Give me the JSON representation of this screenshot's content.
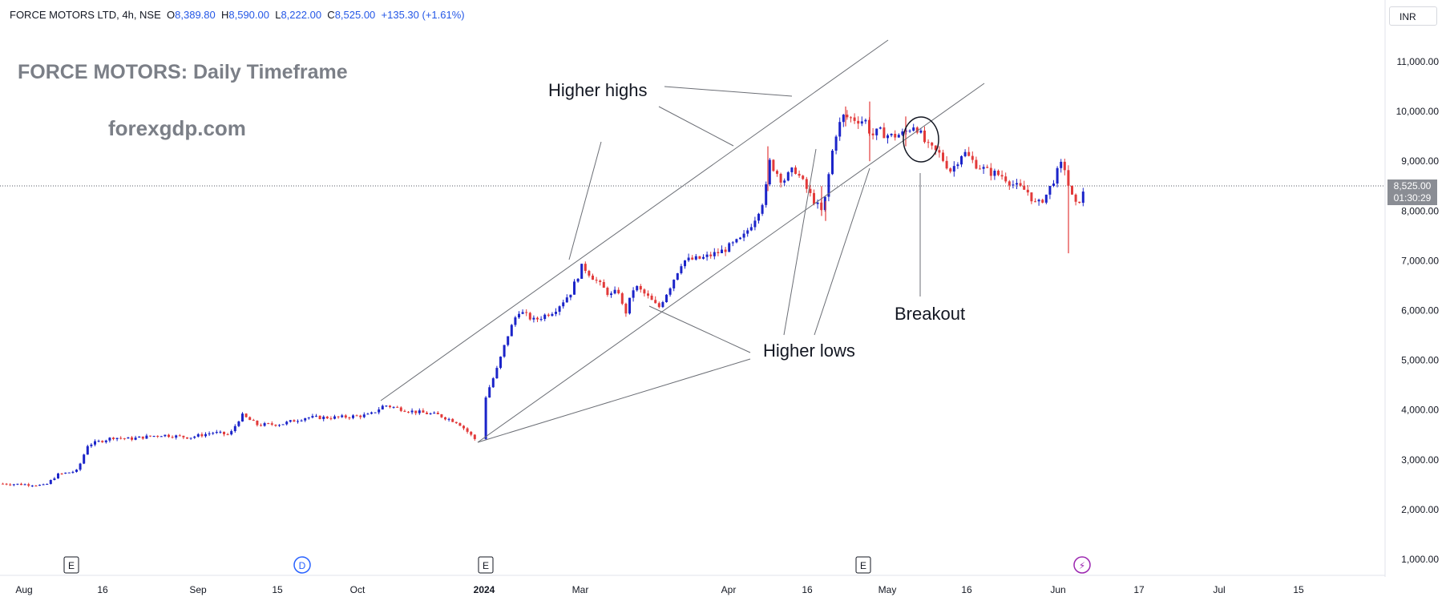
{
  "header": {
    "symbol": "FORCE MOTORS LTD, 4h, NSE",
    "open_label": "O",
    "open": "8,389.80",
    "high_label": "H",
    "high": "8,590.00",
    "low_label": "L",
    "low": "8,222.00",
    "close_label": "C",
    "close": "8,525.00",
    "change": "+135.30 (+1.61%)"
  },
  "overlay": {
    "title": "FORCE MOTORS: Daily Timeframe",
    "site": "forexgdp.com"
  },
  "annotations": {
    "higher_highs": "Higher highs",
    "higher_lows": "Higher lows",
    "breakout": "Breakout"
  },
  "price_axis": {
    "currency": "INR",
    "current_price": "8,525.00",
    "countdown": "01:30:29"
  },
  "event_markers": [
    {
      "label": "E",
      "x_label": "Aug-16"
    },
    {
      "label": "D",
      "x_label": "Oct"
    },
    {
      "label": "E",
      "x_label": "2024"
    },
    {
      "label": "E",
      "x_label": "Apr-May"
    },
    {
      "label": "⚡",
      "x_label": "Jun"
    }
  ],
  "colors": {
    "up": "#1b24c9",
    "down": "#e23a3a",
    "trend_line": "#6b6e75",
    "grid_price": "#555a66",
    "dividend_marker": "#2962ff",
    "lightning_marker": "#9c27b0"
  },
  "chart_data": {
    "type": "candlestick",
    "title": "FORCE MOTORS: Daily Timeframe",
    "y_ticks": [
      1000,
      2000,
      3000,
      4000,
      5000,
      6000,
      7000,
      8000,
      9000,
      10000,
      11000
    ],
    "y_tick_labels": [
      "1,000.00",
      "2,000.00",
      "3,000.00",
      "4,000.00",
      "5,000.00",
      "6,000.00",
      "7,000.00",
      "8,000.00",
      "9,000.00",
      "10,000.00",
      "11,000.00"
    ],
    "ylim": [
      600,
      11900
    ],
    "x_ticks": [
      "Aug",
      "16",
      "Sep",
      "15",
      "Oct",
      "2024",
      "Mar",
      "Apr",
      "16",
      "May",
      "16",
      "Jun",
      "17",
      "Jul",
      "15"
    ],
    "last_price": 8525,
    "path_close": [
      {
        "x": 0,
        "y": 2520
      },
      {
        "x": 40,
        "y": 2500
      },
      {
        "x": 55,
        "y": 2480
      },
      {
        "x": 70,
        "y": 2700
      },
      {
        "x": 95,
        "y": 2780
      },
      {
        "x": 108,
        "y": 3300
      },
      {
        "x": 140,
        "y": 3450
      },
      {
        "x": 160,
        "y": 3420
      },
      {
        "x": 200,
        "y": 3500
      },
      {
        "x": 235,
        "y": 3450
      },
      {
        "x": 265,
        "y": 3550
      },
      {
        "x": 285,
        "y": 3500
      },
      {
        "x": 300,
        "y": 3900
      },
      {
        "x": 320,
        "y": 3700
      },
      {
        "x": 350,
        "y": 3720
      },
      {
        "x": 380,
        "y": 3850
      },
      {
        "x": 420,
        "y": 3850
      },
      {
        "x": 460,
        "y": 3900
      },
      {
        "x": 478,
        "y": 4100
      },
      {
        "x": 510,
        "y": 3980
      },
      {
        "x": 545,
        "y": 3900
      },
      {
        "x": 570,
        "y": 3750
      },
      {
        "x": 592,
        "y": 3400
      },
      {
        "x": 605,
        "y": 4300
      },
      {
        "x": 618,
        "y": 4800
      },
      {
        "x": 632,
        "y": 5500
      },
      {
        "x": 645,
        "y": 6000
      },
      {
        "x": 665,
        "y": 5800
      },
      {
        "x": 690,
        "y": 6000
      },
      {
        "x": 710,
        "y": 6350
      },
      {
        "x": 725,
        "y": 6900
      },
      {
        "x": 745,
        "y": 6550
      },
      {
        "x": 760,
        "y": 6300
      },
      {
        "x": 770,
        "y": 6400
      },
      {
        "x": 778,
        "y": 5900
      },
      {
        "x": 790,
        "y": 6500
      },
      {
        "x": 805,
        "y": 6300
      },
      {
        "x": 820,
        "y": 6050
      },
      {
        "x": 835,
        "y": 6500
      },
      {
        "x": 850,
        "y": 7000
      },
      {
        "x": 875,
        "y": 7050
      },
      {
        "x": 900,
        "y": 7200
      },
      {
        "x": 925,
        "y": 7450
      },
      {
        "x": 940,
        "y": 7850
      },
      {
        "x": 953,
        "y": 8300
      },
      {
        "x": 958,
        "y": 9000
      },
      {
        "x": 975,
        "y": 8600
      },
      {
        "x": 990,
        "y": 8850
      },
      {
        "x": 1010,
        "y": 8300
      },
      {
        "x": 1025,
        "y": 7950
      },
      {
        "x": 1035,
        "y": 9000
      },
      {
        "x": 1040,
        "y": 9500
      },
      {
        "x": 1050,
        "y": 9900
      },
      {
        "x": 1065,
        "y": 9850
      },
      {
        "x": 1080,
        "y": 9800
      },
      {
        "x": 1085,
        "y": 9500
      },
      {
        "x": 1095,
        "y": 9600
      },
      {
        "x": 1110,
        "y": 9500
      },
      {
        "x": 1125,
        "y": 9550
      },
      {
        "x": 1140,
        "y": 9750
      },
      {
        "x": 1155,
        "y": 9300
      },
      {
        "x": 1170,
        "y": 9150
      },
      {
        "x": 1185,
        "y": 8800
      },
      {
        "x": 1200,
        "y": 9200
      },
      {
        "x": 1215,
        "y": 8950
      },
      {
        "x": 1230,
        "y": 8800
      },
      {
        "x": 1250,
        "y": 8700
      },
      {
        "x": 1265,
        "y": 8500
      },
      {
        "x": 1280,
        "y": 8400
      },
      {
        "x": 1292,
        "y": 8100
      },
      {
        "x": 1305,
        "y": 8350
      },
      {
        "x": 1315,
        "y": 8700
      },
      {
        "x": 1325,
        "y": 9000
      },
      {
        "x": 1333,
        "y": 8400
      },
      {
        "x": 1340,
        "y": 8100
      },
      {
        "x": 1350,
        "y": 8350
      },
      {
        "x": 1360,
        "y": 8500
      }
    ],
    "spikes": [
      {
        "x": 958,
        "y_low": 8400,
        "y_high": 9300
      },
      {
        "x": 1025,
        "y_low": 7900,
        "y_high": 8500
      },
      {
        "x": 1030,
        "y_low": 7800,
        "y_high": 8200
      },
      {
        "x": 1055,
        "y_low": 9700,
        "y_high": 10100
      },
      {
        "x": 1085,
        "y_low": 9000,
        "y_high": 10200
      },
      {
        "x": 1130,
        "y_low": 9300,
        "y_high": 9900
      },
      {
        "x": 1333,
        "y_low": 7150,
        "y_high": 8800
      }
    ]
  }
}
